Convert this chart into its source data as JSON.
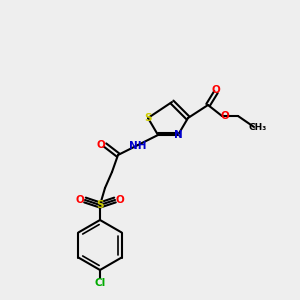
{
  "bg_color": "#eeeeee",
  "bond_color": "#000000",
  "bond_lw": 1.5,
  "atom_colors": {
    "O": "#ff0000",
    "N": "#0000cc",
    "S": "#cccc00",
    "Cl": "#00aa00",
    "C": "#000000",
    "H": "#888888"
  },
  "font_size": 7.5
}
